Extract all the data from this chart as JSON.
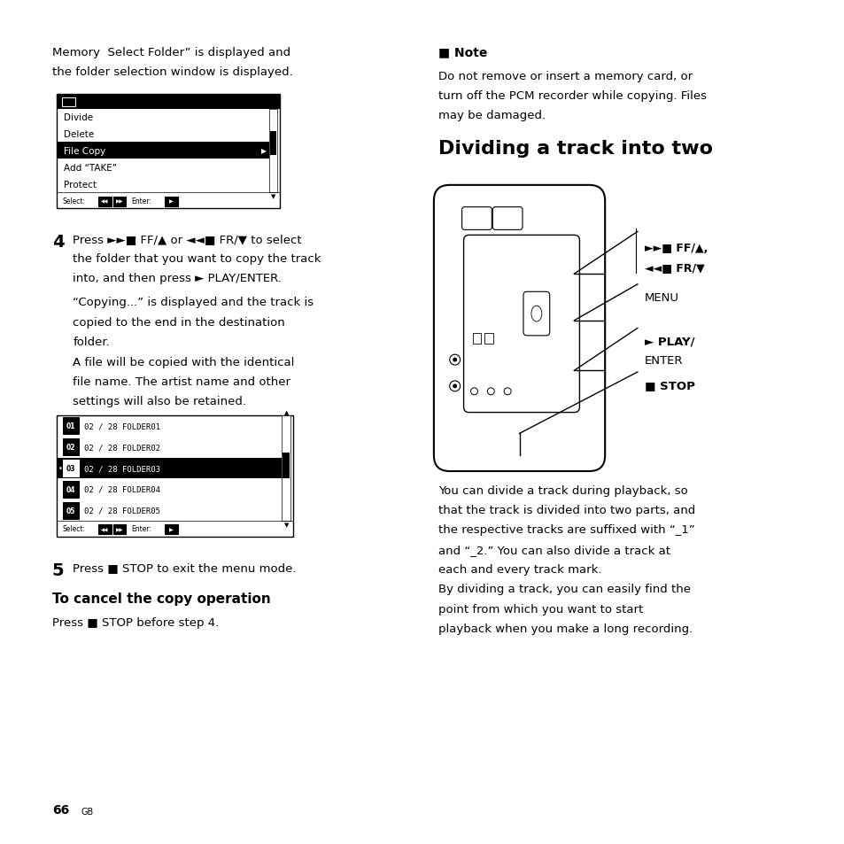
{
  "page_bg": "#ffffff",
  "page_width": 9.54,
  "page_height": 9.54,
  "title_right": "Dividing a track into two",
  "note_title": "☒ Note",
  "note_text": "Do not remove or insert a memory card, or\nturn off the PCM recorder while copying. Files\nmay be damaged.",
  "top_text_line1": "Memory  Select Folder” is displayed and",
  "top_text_line2": "the folder selection window is displayed.",
  "menu1_items": [
    "Divide",
    "Delete",
    "File Copy",
    "Add “TAKE”",
    "Protect"
  ],
  "menu1_highlighted": 2,
  "step4_num": "4",
  "step4_line1": "Press ►►■ FF/▲ or ◄◄■ FR/▼ to select",
  "step4_line2": "the folder that you want to copy the track",
  "step4_line3": "into, and then press ► PLAY/ENTER.",
  "step4_sub1_line1": "“Copying...” is displayed and the track is",
  "step4_sub1_line2": "copied to the end in the destination",
  "step4_sub1_line3": "folder.",
  "step4_sub2_line1": "A file will be copied with the identical",
  "step4_sub2_line2": "file name. The artist name and other",
  "step4_sub2_line3": "settings will also be retained.",
  "menu2_rows": [
    {
      "num": "01",
      "date": "02 / 28",
      "name": "FOLDER01"
    },
    {
      "num": "02",
      "date": "02 / 28",
      "name": "FOLDER02"
    },
    {
      "num": "03",
      "date": "02 / 28",
      "name": "FOLDER03"
    },
    {
      "num": "04",
      "date": "02 / 28",
      "name": "FOLDER04"
    },
    {
      "num": "05",
      "date": "02 / 28",
      "name": "FOLDER05"
    }
  ],
  "menu2_highlighted": 2,
  "step5_text": "Press ■ STOP to exit the menu mode.",
  "cancel_title": "To cancel the copy operation",
  "cancel_text": "Press ■ STOP before step 4.",
  "right_body_lines": [
    "You can divide a track during playback, so",
    "that the track is divided into two parts, and",
    "the respective tracks are suffixed with “_1”",
    "and “_2.” You can also divide a track at",
    "each and every track mark.",
    "By dividing a track, you can easily find the",
    "point from which you want to start",
    "playback when you make a long recording."
  ],
  "lbl_ff": "►►■ FF/▲,",
  "lbl_fr": "◄◄■ FR/▼",
  "lbl_menu": "MENU",
  "lbl_play": "► PLAY/",
  "lbl_enter": "ENTER",
  "lbl_stop": "■ STOP",
  "page_number": "66",
  "page_suffix": "GB"
}
